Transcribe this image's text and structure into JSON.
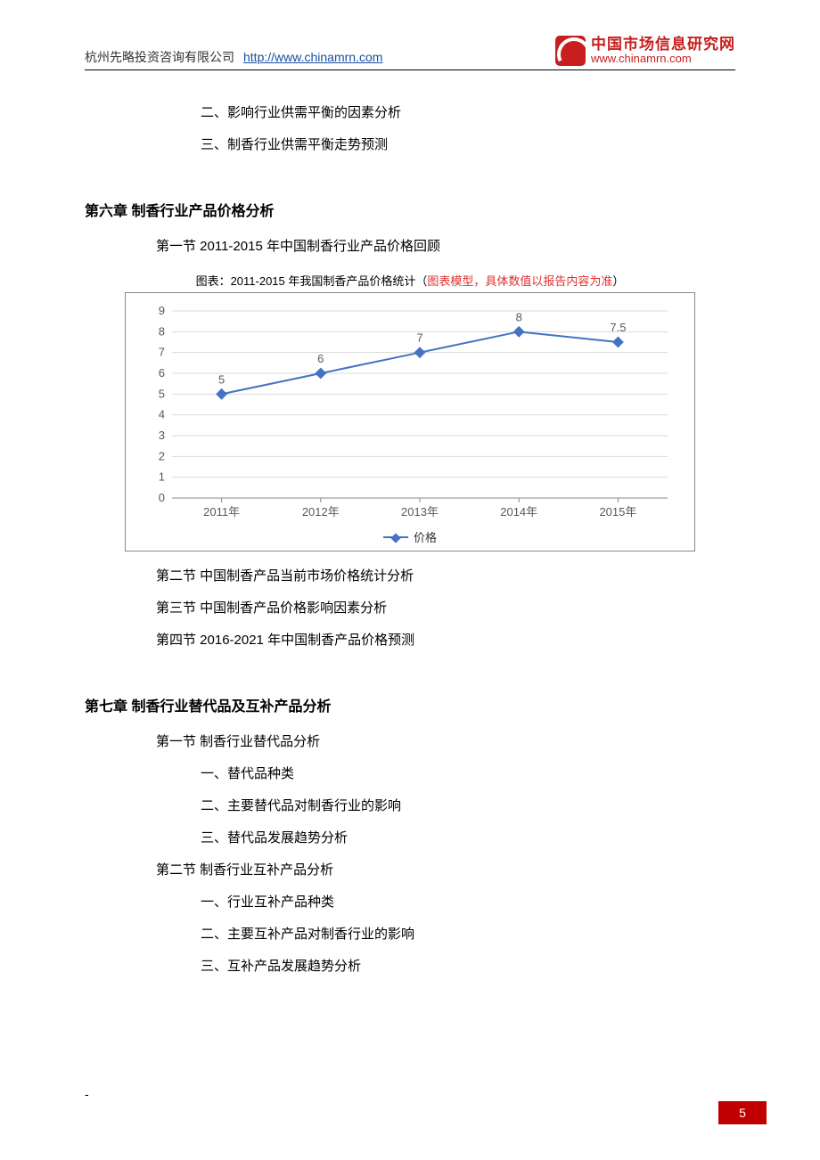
{
  "header": {
    "company": "杭州先略投资咨询有限公司",
    "url_label": "http://www.chinamrn.com",
    "logo_cn": "中国市场信息研究网",
    "logo_url": "www.chinamrn.com",
    "logo_bg": "#c81e1e"
  },
  "pre_lines": [
    "二、影响行业供需平衡的因素分析",
    "三、制香行业供需平衡走势预测"
  ],
  "chapter6": {
    "title": "第六章 制香行业产品价格分析",
    "section1": "第一节 2011-2015 年中国制香行业产品价格回顾",
    "chart_caption_prefix": "图表：2011-2015 年我国制香产品价格统计（",
    "chart_caption_red": "图表模型，具体数值以报告内容为准",
    "chart_caption_suffix": "）",
    "section2": "第二节 中国制香产品当前市场价格统计分析",
    "section3": "第三节 中国制香产品价格影响因素分析",
    "section4": "第四节 2016-2021 年中国制香产品价格预测"
  },
  "chart": {
    "type": "line",
    "categories": [
      "2011年",
      "2012年",
      "2013年",
      "2014年",
      "2015年"
    ],
    "values": [
      5,
      6,
      7,
      8,
      7.5
    ],
    "value_labels": [
      "5",
      "6",
      "7",
      "8",
      "7.5"
    ],
    "ylim_min": 0,
    "ylim_max": 9,
    "ytick_step": 1,
    "yticks": [
      "0",
      "1",
      "2",
      "3",
      "4",
      "5",
      "6",
      "7",
      "8",
      "9"
    ],
    "line_color": "#4472c4",
    "marker_fill": "#4472c4",
    "grid_color": "#d9d9d9",
    "axis_color": "#888888",
    "label_color": "#595959",
    "background_color": "#ffffff",
    "legend_label": "价格",
    "marker_shape": "diamond",
    "line_width": 2,
    "marker_size": 8,
    "label_fontsize": 13,
    "tick_fontsize": 13
  },
  "chapter7": {
    "title": "第七章 制香行业替代品及互补产品分析",
    "section1": "第一节 制香行业替代品分析",
    "s1_items": [
      "一、替代品种类",
      "二、主要替代品对制香行业的影响",
      "三、替代品发展趋势分析"
    ],
    "section2": "第二节 制香行业互补产品分析",
    "s2_items": [
      "一、行业互补产品种类",
      "二、主要互补产品对制香行业的影响",
      "三、互补产品发展趋势分析"
    ]
  },
  "page_number": "5",
  "footer_dash": "-"
}
